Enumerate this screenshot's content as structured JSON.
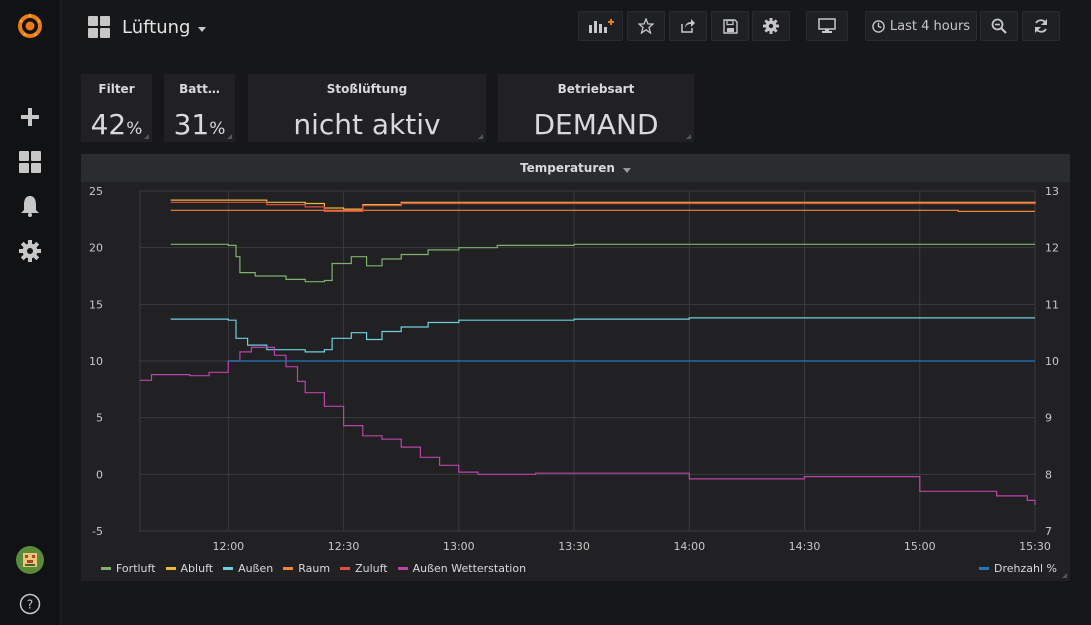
{
  "app": {
    "title": "Lüftung",
    "time_range": "Last 4 hours"
  },
  "colors": {
    "brand": "#eb7b18",
    "background": "#161719",
    "panel": "#212124"
  },
  "sidebar": {
    "items": [
      {
        "icon": "grafana-logo-icon"
      },
      {
        "icon": "plus-icon"
      },
      {
        "icon": "dashboards-icon"
      },
      {
        "icon": "bell-icon"
      },
      {
        "icon": "gear-icon"
      },
      {
        "icon": "user-avatar"
      },
      {
        "icon": "help-icon",
        "label": "?"
      }
    ]
  },
  "toolbar": {
    "buttons": [
      {
        "icon": "add-panel-icon"
      },
      {
        "icon": "star-icon"
      },
      {
        "icon": "share-icon"
      },
      {
        "icon": "save-icon"
      },
      {
        "icon": "gear-icon"
      },
      {
        "icon": "monitor-icon"
      },
      {
        "icon": "clock-icon",
        "label": "Last 4 hours"
      },
      {
        "icon": "zoom-out-icon"
      },
      {
        "icon": "refresh-icon"
      }
    ]
  },
  "stats": [
    {
      "title": "Filter",
      "value": "42",
      "unit": "%"
    },
    {
      "title": "Batt…",
      "value": "31",
      "unit": "%"
    },
    {
      "title": "Stoßlüftung",
      "value": "nicht aktiv",
      "unit": ""
    },
    {
      "title": "Betriebsart",
      "value": "DEMAND",
      "unit": ""
    }
  ],
  "chart_data": {
    "type": "line",
    "title": "Temperaturen",
    "x_ticks": [
      "12:00",
      "12:30",
      "13:00",
      "13:30",
      "14:00",
      "14:30",
      "15:00",
      "15:30"
    ],
    "x_range": [
      "11:37",
      "15:30"
    ],
    "ylim_left": [
      -5,
      25
    ],
    "yticks_left": [
      25,
      20,
      15,
      10,
      5,
      0,
      -5
    ],
    "ylim_right": [
      7,
      13
    ],
    "yticks_right": [
      13,
      12,
      11,
      10,
      9,
      8,
      7
    ],
    "grid": true,
    "legend_position": "bottom",
    "series": [
      {
        "name": "Fortluft",
        "color": "#7eb26d",
        "axis": "left",
        "points": [
          [
            "11:45",
            20.3
          ],
          [
            "12:00",
            20.2
          ],
          [
            "12:02",
            19.2
          ],
          [
            "12:03",
            17.8
          ],
          [
            "12:07",
            17.5
          ],
          [
            "12:15",
            17.2
          ],
          [
            "12:20",
            17.0
          ],
          [
            "12:25",
            17.1
          ],
          [
            "12:27",
            18.6
          ],
          [
            "12:32",
            19.2
          ],
          [
            "12:36",
            18.4
          ],
          [
            "12:40",
            19.0
          ],
          [
            "12:45",
            19.4
          ],
          [
            "12:52",
            19.8
          ],
          [
            "13:00",
            20.0
          ],
          [
            "13:10",
            20.2
          ],
          [
            "13:30",
            20.3
          ],
          [
            "14:00",
            20.3
          ],
          [
            "14:30",
            20.3
          ],
          [
            "15:00",
            20.3
          ],
          [
            "15:30",
            20.3
          ]
        ]
      },
      {
        "name": "Abluft",
        "color": "#eab839",
        "axis": "left",
        "points": [
          [
            "11:45",
            24.2
          ],
          [
            "12:00",
            24.2
          ],
          [
            "12:10",
            24.0
          ],
          [
            "12:20",
            23.9
          ],
          [
            "12:25",
            23.5
          ],
          [
            "12:30",
            23.4
          ],
          [
            "12:35",
            23.8
          ],
          [
            "12:45",
            24.0
          ],
          [
            "13:00",
            24.0
          ],
          [
            "13:30",
            24.0
          ],
          [
            "14:00",
            24.0
          ],
          [
            "14:30",
            24.0
          ],
          [
            "15:00",
            24.0
          ],
          [
            "15:30",
            23.9
          ]
        ]
      },
      {
        "name": "Außen",
        "color": "#6ed0e0",
        "axis": "left",
        "points": [
          [
            "11:45",
            13.7
          ],
          [
            "12:00",
            13.6
          ],
          [
            "12:02",
            12.0
          ],
          [
            "12:05",
            11.4
          ],
          [
            "12:10",
            11.0
          ],
          [
            "12:20",
            10.8
          ],
          [
            "12:25",
            11.0
          ],
          [
            "12:27",
            12.0
          ],
          [
            "12:32",
            12.5
          ],
          [
            "12:36",
            11.9
          ],
          [
            "12:40",
            12.6
          ],
          [
            "12:45",
            13.0
          ],
          [
            "12:52",
            13.4
          ],
          [
            "13:00",
            13.6
          ],
          [
            "13:30",
            13.7
          ],
          [
            "14:00",
            13.8
          ],
          [
            "14:30",
            13.8
          ],
          [
            "15:00",
            13.8
          ],
          [
            "15:30",
            13.8
          ]
        ]
      },
      {
        "name": "Raum",
        "color": "#ef843c",
        "axis": "left",
        "points": [
          [
            "11:45",
            23.3
          ],
          [
            "12:00",
            23.3
          ],
          [
            "12:30",
            23.3
          ],
          [
            "13:00",
            23.3
          ],
          [
            "13:30",
            23.3
          ],
          [
            "14:00",
            23.3
          ],
          [
            "14:30",
            23.3
          ],
          [
            "15:00",
            23.3
          ],
          [
            "15:10",
            23.2
          ],
          [
            "15:30",
            23.2
          ]
        ]
      },
      {
        "name": "Zuluft",
        "color": "#e24d42",
        "axis": "left",
        "points": [
          [
            "11:45",
            24.0
          ],
          [
            "12:00",
            24.0
          ],
          [
            "12:10",
            23.8
          ],
          [
            "12:20",
            23.6
          ],
          [
            "12:25",
            23.2
          ],
          [
            "12:30",
            23.2
          ],
          [
            "12:35",
            23.7
          ],
          [
            "12:45",
            23.9
          ],
          [
            "13:00",
            23.9
          ],
          [
            "13:30",
            23.9
          ],
          [
            "14:00",
            23.9
          ],
          [
            "14:30",
            23.9
          ],
          [
            "15:00",
            23.9
          ],
          [
            "15:30",
            23.8
          ]
        ]
      },
      {
        "name": "Außen Wetterstation",
        "color": "#ba43a9",
        "axis": "left",
        "points": [
          [
            "11:37",
            8.3
          ],
          [
            "11:40",
            8.8
          ],
          [
            "11:45",
            8.8
          ],
          [
            "11:50",
            8.7
          ],
          [
            "11:55",
            9.0
          ],
          [
            "12:00",
            10.0
          ],
          [
            "12:03",
            10.8
          ],
          [
            "12:06",
            11.2
          ],
          [
            "12:08",
            11.2
          ],
          [
            "12:12",
            10.5
          ],
          [
            "12:15",
            9.5
          ],
          [
            "12:18",
            8.2
          ],
          [
            "12:20",
            7.2
          ],
          [
            "12:25",
            6.0
          ],
          [
            "12:30",
            4.3
          ],
          [
            "12:35",
            3.4
          ],
          [
            "12:40",
            3.1
          ],
          [
            "12:45",
            2.4
          ],
          [
            "12:50",
            1.5
          ],
          [
            "12:55",
            0.8
          ],
          [
            "13:00",
            0.2
          ],
          [
            "13:05",
            0.0
          ],
          [
            "13:20",
            0.1
          ],
          [
            "13:40",
            0.1
          ],
          [
            "14:00",
            -0.4
          ],
          [
            "14:30",
            -0.2
          ],
          [
            "15:00",
            -1.5
          ],
          [
            "15:20",
            -1.9
          ],
          [
            "15:28",
            -2.3
          ],
          [
            "15:30",
            -2.7
          ]
        ]
      },
      {
        "name": "Drehzahl %",
        "color": "#1f78c1",
        "axis": "right",
        "points": [
          [
            "12:00",
            10.0
          ],
          [
            "15:30",
            10.0
          ]
        ]
      }
    ]
  }
}
